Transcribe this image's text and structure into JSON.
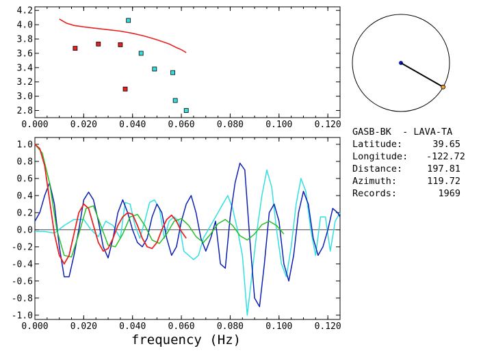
{
  "station": {
    "title": "GASB-BK  - LAVA-TA",
    "fields": [
      {
        "label": "Latitude:",
        "value": "39.65"
      },
      {
        "label": "Longitude:",
        "value": "-122.72"
      },
      {
        "label": "Distance:",
        "value": "197.81"
      },
      {
        "label": "Azimuth:",
        "value": "119.72"
      },
      {
        "label": "Records:",
        "value": "1969"
      }
    ],
    "azimuth_deg": 119.72
  },
  "chart_data": [
    {
      "type": "scatter",
      "title": "",
      "xlim": [
        0,
        0.125
      ],
      "ylim": [
        2.7,
        4.25
      ],
      "xticks": [
        "0.000",
        "0.020",
        "0.040",
        "0.060",
        "0.080",
        "0.100",
        "0.120"
      ],
      "yticks": [
        "2.8",
        "3.0",
        "3.2",
        "3.4",
        "3.6",
        "3.8",
        "4.0",
        "4.2"
      ],
      "series": [
        {
          "color": "#e82020",
          "kind": "line",
          "x": [
            0.01,
            0.013,
            0.016,
            0.02,
            0.025,
            0.03,
            0.035,
            0.04,
            0.045,
            0.05,
            0.055,
            0.058,
            0.06,
            0.062
          ],
          "y": [
            4.08,
            4.02,
            3.99,
            3.97,
            3.95,
            3.93,
            3.91,
            3.88,
            3.84,
            3.79,
            3.73,
            3.68,
            3.65,
            3.61
          ]
        },
        {
          "color": "#e82020",
          "kind": "points",
          "x": [
            0.0165,
            0.026,
            0.035,
            0.037
          ],
          "y": [
            3.67,
            3.73,
            3.72,
            3.1
          ]
        },
        {
          "color": "#30e0e0",
          "kind": "points",
          "x": [
            0.0383,
            0.0435,
            0.049,
            0.0565,
            0.0575,
            0.062
          ],
          "y": [
            4.06,
            3.6,
            3.38,
            3.33,
            2.94,
            2.8
          ]
        }
      ]
    },
    {
      "type": "line",
      "xlabel": "frequency (Hz)",
      "xlim": [
        0,
        0.125
      ],
      "ylim": [
        -1.05,
        1.08
      ],
      "xticks": [
        "0.000",
        "0.020",
        "0.040",
        "0.060",
        "0.080",
        "0.100",
        "0.120"
      ],
      "yticks": [
        "1.0",
        "0.8",
        "0.6",
        "0.4",
        "0.2",
        "0.0",
        "-0.2",
        "-0.4",
        "-0.6",
        "-0.8",
        "-1.0"
      ],
      "series": [
        {
          "color": "#30e0e0",
          "x": [
            0.0,
            0.004,
            0.008,
            0.012,
            0.016,
            0.02,
            0.023,
            0.026,
            0.029,
            0.032,
            0.035,
            0.037,
            0.039,
            0.041,
            0.043,
            0.045,
            0.047,
            0.049,
            0.051,
            0.053,
            0.055,
            0.057,
            0.059,
            0.061,
            0.063,
            0.065,
            0.067,
            0.069,
            0.071,
            0.073,
            0.075,
            0.077,
            0.079,
            0.081,
            0.083,
            0.085,
            0.087,
            0.089,
            0.091,
            0.093,
            0.095,
            0.097,
            0.099,
            0.101,
            0.103,
            0.105,
            0.107,
            0.109,
            0.111,
            0.113,
            0.115,
            0.117,
            0.119,
            0.121,
            0.123,
            0.125
          ],
          "y": [
            -0.02,
            -0.02,
            -0.04,
            0.05,
            0.12,
            0.12,
            0.0,
            -0.08,
            0.1,
            0.05,
            -0.1,
            0.32,
            0.3,
            0.05,
            -0.1,
            0.1,
            0.32,
            0.35,
            0.25,
            -0.1,
            0.1,
            0.15,
            0.1,
            -0.25,
            -0.3,
            -0.35,
            -0.3,
            -0.1,
            0.0,
            0.1,
            0.2,
            0.3,
            0.4,
            0.25,
            0.0,
            -0.3,
            -1.0,
            -0.5,
            0.0,
            0.4,
            0.7,
            0.5,
            0.0,
            -0.4,
            -0.55,
            -0.2,
            0.3,
            0.6,
            0.45,
            0.0,
            -0.3,
            0.15,
            0.15,
            -0.25,
            0.1,
            0.2
          ]
        },
        {
          "color": "#0a1eb4",
          "x": [
            0.0,
            0.002,
            0.004,
            0.006,
            0.008,
            0.01,
            0.012,
            0.014,
            0.016,
            0.018,
            0.02,
            0.022,
            0.024,
            0.026,
            0.028,
            0.03,
            0.032,
            0.034,
            0.036,
            0.038,
            0.04,
            0.042,
            0.044,
            0.046,
            0.048,
            0.05,
            0.052,
            0.054,
            0.056,
            0.058,
            0.06,
            0.062,
            0.064,
            0.066,
            0.068,
            0.07,
            0.072,
            0.074,
            0.076,
            0.078,
            0.08,
            0.082,
            0.084,
            0.086,
            0.088,
            0.09,
            0.092,
            0.094,
            0.096,
            0.098,
            0.1,
            0.102,
            0.104,
            0.106,
            0.108,
            0.11,
            0.112,
            0.114,
            0.116,
            0.118,
            0.12,
            0.122,
            0.124,
            0.125
          ],
          "y": [
            0.1,
            0.2,
            0.4,
            0.55,
            0.3,
            -0.2,
            -0.55,
            -0.55,
            -0.3,
            0.0,
            0.35,
            0.44,
            0.35,
            0.1,
            -0.2,
            -0.33,
            -0.1,
            0.2,
            0.35,
            0.2,
            0.0,
            -0.15,
            -0.2,
            -0.1,
            0.15,
            0.3,
            0.2,
            -0.1,
            -0.3,
            -0.2,
            0.1,
            0.3,
            0.4,
            0.2,
            -0.1,
            -0.25,
            -0.1,
            0.1,
            -0.4,
            -0.45,
            0.15,
            0.55,
            0.78,
            0.7,
            -0.1,
            -0.8,
            -0.9,
            -0.4,
            0.2,
            0.3,
            0.1,
            -0.4,
            -0.6,
            -0.3,
            0.2,
            0.45,
            0.3,
            -0.1,
            -0.3,
            -0.2,
            0.0,
            0.25,
            0.2,
            0.15
          ]
        },
        {
          "color": "#20c020",
          "x": [
            0.0,
            0.003,
            0.006,
            0.009,
            0.012,
            0.015,
            0.018,
            0.021,
            0.024,
            0.027,
            0.03,
            0.033,
            0.036,
            0.039,
            0.042,
            0.045,
            0.048,
            0.051,
            0.054,
            0.057,
            0.06,
            0.063,
            0.066,
            0.069,
            0.072,
            0.075,
            0.078,
            0.081,
            0.084,
            0.087,
            0.09,
            0.093,
            0.096,
            0.099,
            0.102
          ],
          "y": [
            1.0,
            0.9,
            0.55,
            0.0,
            -0.3,
            -0.32,
            -0.05,
            0.25,
            0.28,
            0.05,
            -0.18,
            -0.2,
            -0.05,
            0.15,
            0.18,
            0.05,
            -0.12,
            -0.16,
            -0.05,
            0.1,
            0.13,
            0.05,
            -0.08,
            -0.15,
            -0.05,
            0.07,
            0.12,
            0.05,
            -0.07,
            -0.12,
            -0.05,
            0.06,
            0.1,
            0.05,
            -0.05
          ]
        },
        {
          "color": "#e82020",
          "x": [
            0.0,
            0.002,
            0.004,
            0.006,
            0.008,
            0.01,
            0.012,
            0.014,
            0.016,
            0.018,
            0.02,
            0.022,
            0.024,
            0.026,
            0.028,
            0.03,
            0.032,
            0.034,
            0.036,
            0.038,
            0.04,
            0.042,
            0.044,
            0.046,
            0.048,
            0.05,
            0.052,
            0.054,
            0.056,
            0.058,
            0.06,
            0.062
          ],
          "y": [
            1.0,
            0.95,
            0.75,
            0.35,
            -0.05,
            -0.3,
            -0.4,
            -0.3,
            -0.05,
            0.2,
            0.3,
            0.25,
            0.05,
            -0.15,
            -0.25,
            -0.22,
            -0.1,
            0.05,
            0.15,
            0.2,
            0.18,
            0.05,
            -0.1,
            -0.2,
            -0.22,
            -0.15,
            0.0,
            0.12,
            0.17,
            0.1,
            -0.02,
            -0.1
          ]
        }
      ]
    }
  ]
}
